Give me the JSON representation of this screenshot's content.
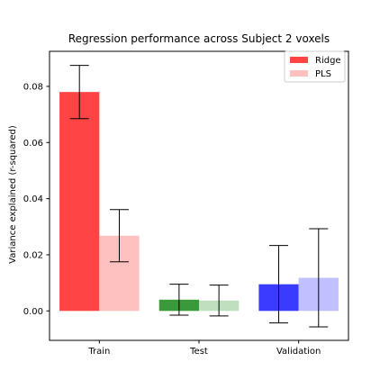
{
  "chart_data": {
    "type": "bar",
    "title": "Regression performance across Subject 2 voxels",
    "xlabel": "",
    "ylabel": "Variance explained (r-squared)",
    "categories": [
      "Train",
      "Test",
      "Validation"
    ],
    "ylim": [
      -0.0105,
      0.0925
    ],
    "yticks": [
      0.0,
      0.02,
      0.04,
      0.06,
      0.08
    ],
    "ytick_labels": [
      "0.00",
      "0.02",
      "0.04",
      "0.06",
      "0.08"
    ],
    "grid": false,
    "legend_position": "top-right",
    "series": [
      {
        "name": "Ridge",
        "values": [
          0.078,
          0.004,
          0.0095
        ],
        "errors": [
          0.0095,
          0.0055,
          0.0138
        ],
        "colors": [
          "#ff4444",
          "#3a9a3a",
          "#3b3bff"
        ],
        "legend_color": "#ff4444"
      },
      {
        "name": "PLS",
        "values": [
          0.0268,
          0.0037,
          0.0118
        ],
        "errors": [
          0.0093,
          0.0055,
          0.0175
        ],
        "colors": [
          "#ffc0c0",
          "#bfe0bf",
          "#c0c0ff"
        ],
        "legend_color": "#ffc0c0"
      }
    ]
  }
}
